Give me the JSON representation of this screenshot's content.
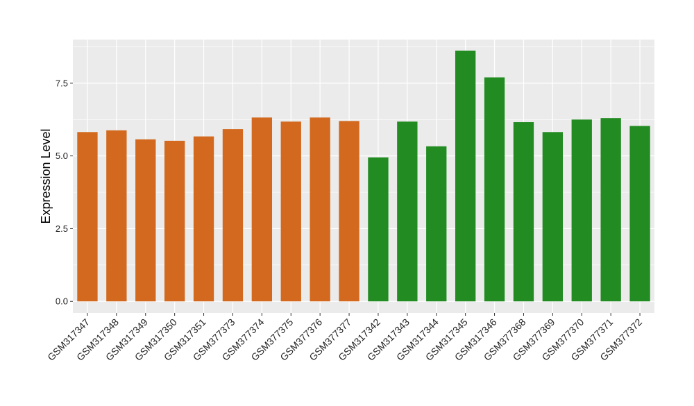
{
  "chart_data": {
    "type": "bar",
    "title": "",
    "xlabel": "",
    "ylabel": "Expression Level",
    "ylim": [
      -0.4,
      9.0
    ],
    "yticks": [
      0.0,
      2.5,
      5.0,
      7.5
    ],
    "ytick_labels": [
      "0.0",
      "2.5",
      "5.0",
      "7.5"
    ],
    "grid": true,
    "legend": "none",
    "categories": [
      "GSM317347",
      "GSM317348",
      "GSM317349",
      "GSM317350",
      "GSM317351",
      "GSM377373",
      "GSM377374",
      "GSM377375",
      "GSM377376",
      "GSM377377",
      "GSM317342",
      "GSM317343",
      "GSM317344",
      "GSM317345",
      "GSM317346",
      "GSM377368",
      "GSM377369",
      "GSM377370",
      "GSM377371",
      "GSM377372"
    ],
    "values": [
      5.82,
      5.88,
      5.57,
      5.52,
      5.67,
      5.92,
      6.32,
      6.18,
      6.32,
      6.2,
      4.95,
      6.18,
      5.33,
      8.62,
      7.7,
      6.16,
      5.82,
      6.25,
      6.3,
      6.03
    ],
    "group": [
      1,
      1,
      1,
      1,
      1,
      1,
      1,
      1,
      1,
      1,
      2,
      2,
      2,
      2,
      2,
      2,
      2,
      2,
      2,
      2
    ],
    "group_colors": {
      "1": "#d2691e",
      "2": "#228b22"
    },
    "panel_background": "#ebebeb",
    "grid_color": "#ffffff"
  }
}
